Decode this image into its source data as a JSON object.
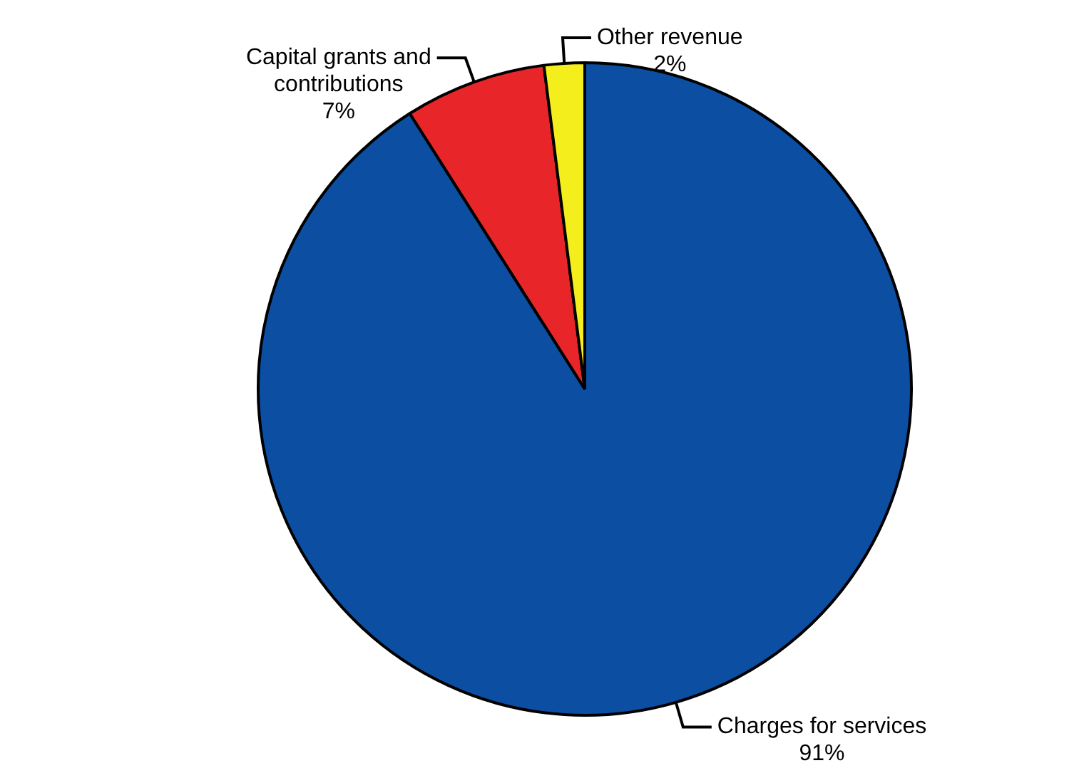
{
  "chart_data": {
    "type": "pie",
    "categories": [
      "Charges for services",
      "Capital grants and contributions",
      "Other revenue"
    ],
    "values": [
      91,
      7,
      2
    ],
    "value_labels": [
      "91%",
      "7%",
      "2%"
    ],
    "colors": [
      "#0b4ea2",
      "#e8262a",
      "#f4ee1c"
    ],
    "legend": false
  }
}
